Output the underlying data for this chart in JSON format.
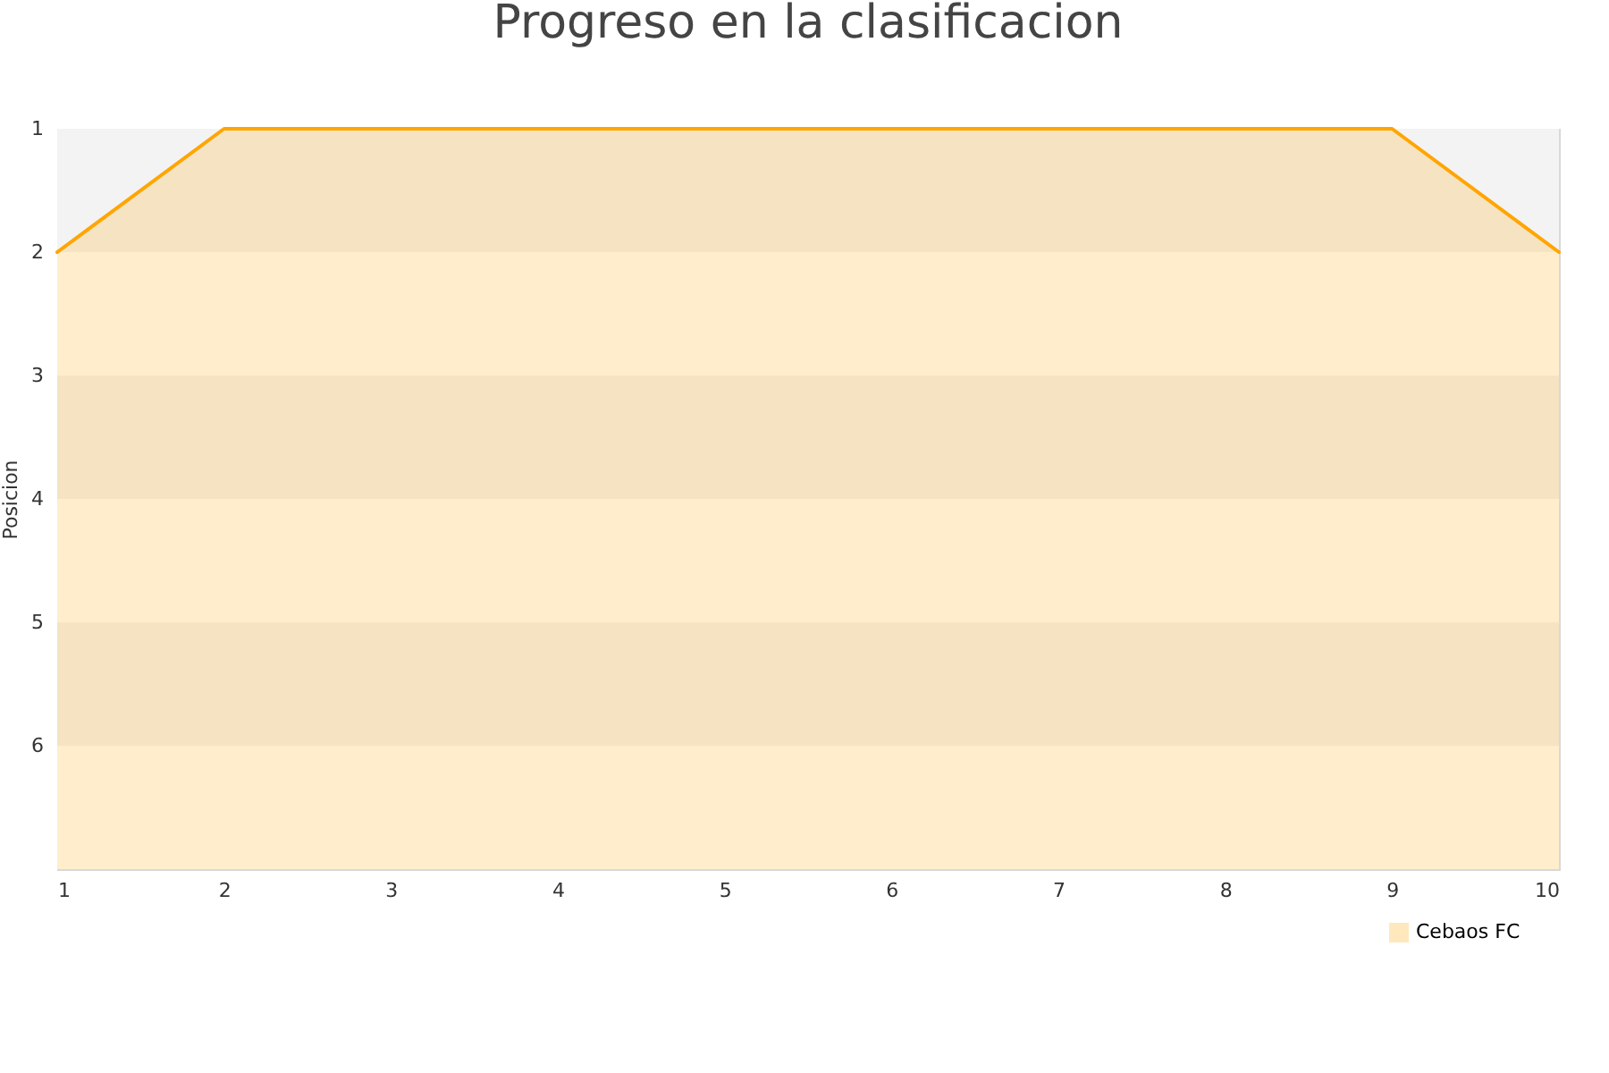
{
  "chart_data": {
    "type": "area",
    "title": "Progreso en la clasificacion",
    "ylabel": "Posicion",
    "x": [
      1,
      2,
      3,
      4,
      5,
      6,
      7,
      8,
      9,
      10
    ],
    "series": [
      {
        "name": "Cebaos FC",
        "color": "#ffa500",
        "values": [
          2,
          1,
          1,
          1,
          1,
          1,
          1,
          1,
          1,
          2
        ]
      }
    ],
    "xlim": [
      1,
      10
    ],
    "xticks": [
      1,
      2,
      3,
      4,
      5,
      6,
      7,
      8,
      9,
      10
    ],
    "ylim": [
      7,
      1
    ],
    "yticks": [
      1,
      2,
      3,
      4,
      5,
      6
    ],
    "grid": "y",
    "legend": "bottom right"
  }
}
